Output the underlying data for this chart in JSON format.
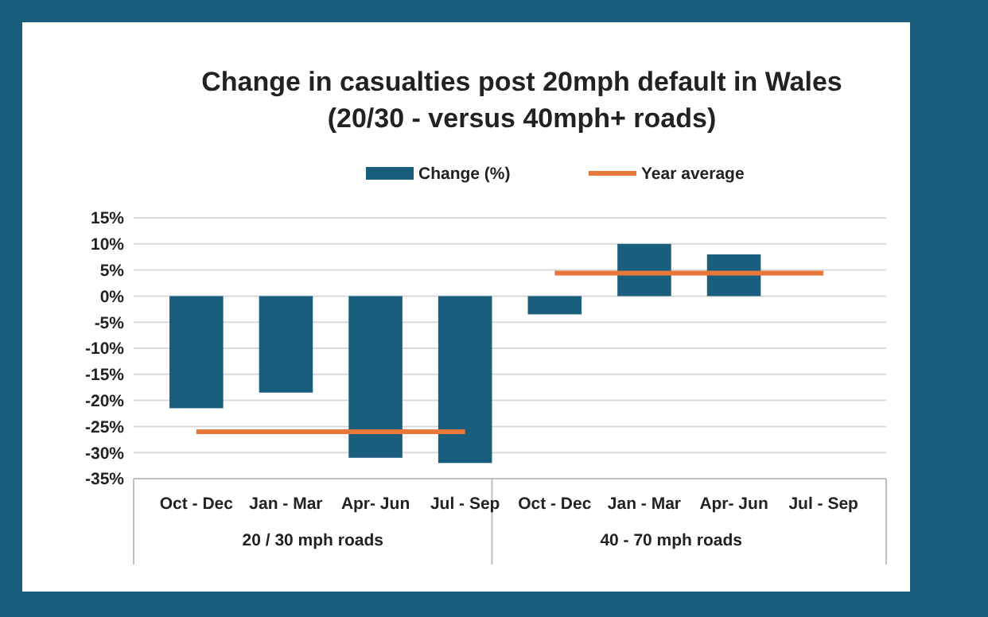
{
  "chart_data": {
    "type": "bar",
    "title": "Change in casualties post 20mph default in Wales",
    "subtitle": "(20/30 - versus 40mph+ roads)",
    "categories": [
      "Oct - Dec",
      "Jan - Mar",
      "Apr- Jun",
      "Jul - Sep",
      "Oct - Dec",
      "Jan - Mar",
      "Apr- Jun",
      "Jul - Sep"
    ],
    "series": [
      {
        "name": "Change (%)",
        "color": "#1a5e7e",
        "values": [
          -21.5,
          -18.5,
          -31,
          -32,
          -3.5,
          10,
          8,
          null
        ]
      },
      {
        "name": "Year average",
        "type": "line",
        "color": "#e8773a",
        "values": [
          -26,
          -26,
          -26,
          -26,
          null,
          null,
          null,
          null
        ]
      },
      {
        "type": "line",
        "color": "#e8773a",
        "values": [
          null,
          null,
          null,
          null,
          4.4,
          4.4,
          4.4,
          4.4
        ]
      }
    ],
    "ylim": [
      -35,
      15
    ],
    "yticks": [
      {
        "value": 15,
        "label": "15%"
      },
      {
        "value": 10,
        "label": "10%"
      },
      {
        "value": 5,
        "label": "5%"
      },
      {
        "value": 0,
        "label": "0%"
      },
      {
        "value": -5,
        "label": "-5%"
      },
      {
        "value": -10,
        "label": "-10%"
      },
      {
        "value": -15,
        "label": "-15%"
      },
      {
        "value": -20,
        "label": "-20%"
      },
      {
        "value": -25,
        "label": "-25%"
      },
      {
        "value": -30,
        "label": "-30%"
      },
      {
        "value": -35,
        "label": "-35%"
      }
    ],
    "annotations": [
      "20 / 30 mph roads",
      "40 - 70 mph roads"
    ],
    "grid": "y",
    "legend": "top"
  }
}
